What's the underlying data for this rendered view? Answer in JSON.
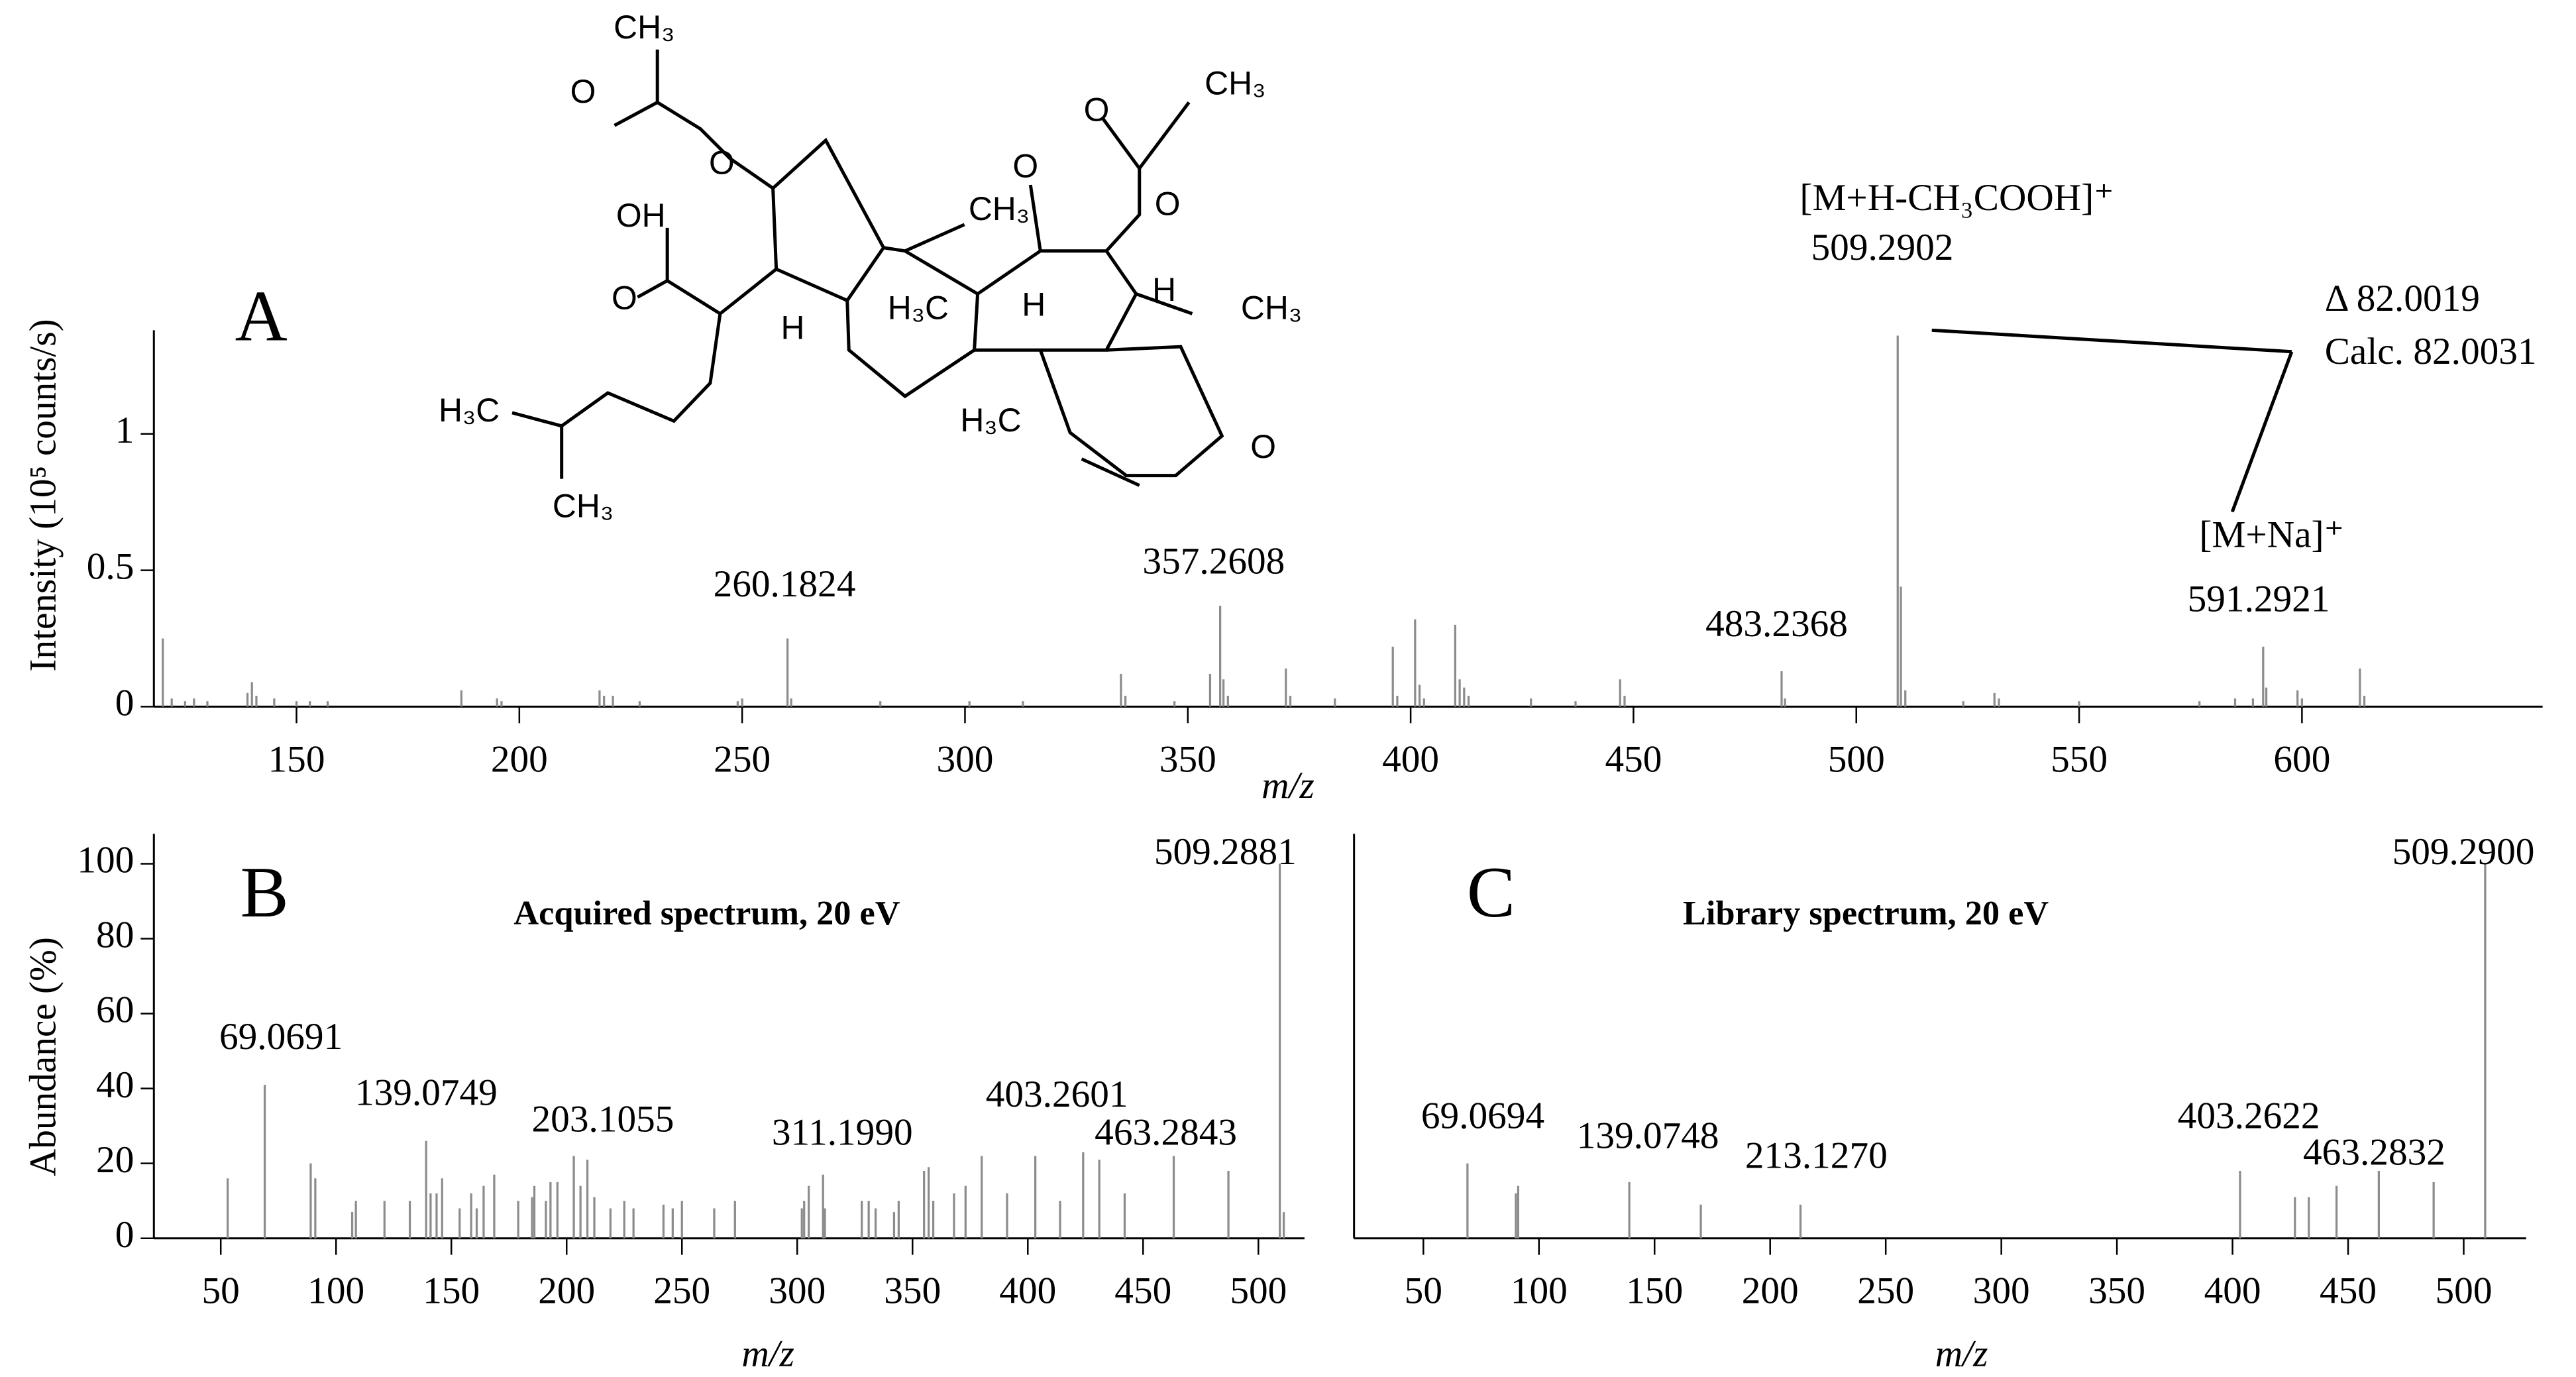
{
  "chart_data": [
    {
      "type": "bar",
      "panel_label": "A",
      "x_label": "m/z",
      "y_label": "Intensity  (10⁵ counts/s)",
      "xlim": [
        118,
        654
      ],
      "ylim": [
        0,
        1.38
      ],
      "xticks": [
        150,
        200,
        250,
        300,
        350,
        400,
        450,
        500,
        550,
        600
      ],
      "yticks": [
        0,
        0.5,
        1
      ],
      "color": "#8c8c8c",
      "x": [
        120,
        122,
        125,
        127,
        130,
        139,
        140,
        141,
        145,
        150,
        153,
        157,
        187,
        195,
        196,
        218,
        219,
        221,
        227,
        249,
        250,
        260.1824,
        261,
        281,
        301,
        313,
        335,
        336,
        347,
        355,
        357.2608,
        358,
        359,
        372,
        373,
        383,
        396,
        397,
        401,
        402,
        403,
        410,
        411,
        412,
        413,
        427,
        437,
        447,
        448,
        483.2368,
        484,
        509.2902,
        510,
        511,
        524,
        531,
        532,
        550,
        577,
        585,
        589,
        591.2921,
        592,
        599,
        600,
        613,
        614
      ],
      "values": [
        0.25,
        0.03,
        0.02,
        0.03,
        0.02,
        0.05,
        0.09,
        0.04,
        0.03,
        0.02,
        0.02,
        0.02,
        0.06,
        0.03,
        0.02,
        0.06,
        0.04,
        0.04,
        0.02,
        0.02,
        0.03,
        0.25,
        0.03,
        0.02,
        0.02,
        0.02,
        0.12,
        0.04,
        0.02,
        0.12,
        0.37,
        0.1,
        0.04,
        0.14,
        0.04,
        0.03,
        0.22,
        0.04,
        0.32,
        0.08,
        0.03,
        0.3,
        0.1,
        0.07,
        0.04,
        0.03,
        0.02,
        0.1,
        0.04,
        0.13,
        0.03,
        1.36,
        0.44,
        0.06,
        0.02,
        0.05,
        0.03,
        0.02,
        0.02,
        0.03,
        0.03,
        0.22,
        0.07,
        0.06,
        0.03,
        0.14,
        0.04
      ],
      "peak_labels": [
        null,
        null,
        null,
        null,
        null,
        null,
        null,
        null,
        null,
        null,
        null,
        null,
        null,
        null,
        null,
        null,
        null,
        null,
        null,
        null,
        null,
        "260.1824",
        null,
        null,
        null,
        null,
        null,
        null,
        null,
        null,
        "357.2608",
        null,
        null,
        null,
        null,
        null,
        null,
        null,
        null,
        null,
        null,
        null,
        null,
        null,
        null,
        null,
        null,
        null,
        null,
        "483.2368",
        null,
        "509.2902",
        null,
        null,
        null,
        null,
        null,
        null,
        null,
        null,
        null,
        "591.2921",
        null,
        null,
        null,
        null,
        null
      ],
      "annotations": [
        "[M+H-CH₃COOH]⁺",
        "Δ 82.0019",
        "Calc. 82.0031",
        "[M+Na]⁺"
      ],
      "structure_labels": [
        "CH₃",
        "O",
        "O",
        "OH",
        "O",
        "CH₃",
        "O",
        "O",
        "O",
        "CH₃",
        "H",
        "H₃C",
        "H",
        "H",
        "CH₃",
        "H₃C",
        "CH₃",
        "H₃C",
        "O"
      ]
    },
    {
      "type": "bar",
      "panel_label": "B",
      "subtitle": "Acquired spectrum, 20 eV",
      "x_label": "m/z",
      "y_label": "Abundance  (%)",
      "xlim": [
        21,
        520
      ],
      "ylim": [
        0,
        108
      ],
      "xticks": [
        50,
        100,
        150,
        200,
        250,
        300,
        350,
        400,
        450,
        500
      ],
      "yticks": [
        0,
        20,
        40,
        60,
        80,
        100
      ],
      "color": "#8c8c8c",
      "x": [
        53,
        69.0691,
        89,
        91,
        107,
        108.6,
        121,
        132,
        139.0749,
        141,
        143.6,
        146,
        153.6,
        158.6,
        161,
        164,
        168.6,
        179,
        185,
        186,
        191,
        193,
        196,
        203.1055,
        206,
        209,
        212,
        219,
        225,
        229,
        242,
        246,
        250,
        264,
        273,
        302,
        303,
        305,
        311.199,
        312,
        328,
        331,
        334,
        342,
        344,
        355,
        357,
        359,
        368,
        373,
        380,
        391,
        403.2601,
        414,
        424,
        431,
        442,
        463.2843,
        487,
        509.2881,
        511
      ],
      "values": [
        16,
        41,
        20,
        16,
        7,
        10,
        10,
        10,
        26,
        12,
        12,
        16,
        8,
        12,
        8,
        14,
        17,
        10,
        11,
        14,
        10,
        15,
        15,
        22,
        14,
        21,
        11,
        8,
        10,
        8,
        9,
        8,
        10,
        8,
        10,
        8,
        10,
        14,
        17,
        8,
        10,
        10,
        8,
        7,
        10,
        18,
        19,
        10,
        12,
        14,
        22,
        12,
        22,
        10,
        23,
        21,
        12,
        22,
        18,
        100,
        7
      ],
      "peak_labels": [
        null,
        "69.0691",
        null,
        null,
        null,
        null,
        null,
        null,
        "139.0749",
        null,
        null,
        null,
        null,
        null,
        null,
        null,
        null,
        null,
        null,
        null,
        null,
        null,
        null,
        "203.1055",
        null,
        null,
        null,
        null,
        null,
        null,
        null,
        null,
        null,
        null,
        null,
        null,
        null,
        null,
        "311.1990",
        null,
        null,
        null,
        null,
        null,
        null,
        null,
        null,
        null,
        null,
        null,
        null,
        null,
        "403.2601",
        null,
        null,
        null,
        null,
        "463.2843",
        null,
        "509.2881",
        null
      ]
    },
    {
      "type": "bar",
      "panel_label": "C",
      "subtitle": "Library spectrum, 20 eV",
      "x_label": "m/z",
      "xlim": [
        20,
        527
      ],
      "ylim": [
        0,
        108
      ],
      "xticks": [
        50,
        100,
        150,
        200,
        250,
        300,
        350,
        400,
        450,
        500
      ],
      "color": "#8c8c8c",
      "x": [
        69.0694,
        90,
        91,
        139.0748,
        170,
        213.127,
        403.2622,
        427,
        433,
        445,
        463.2832,
        487,
        509.29
      ],
      "values": [
        20,
        12,
        14,
        15,
        9,
        9,
        18,
        11,
        11,
        14,
        18,
        15,
        100
      ],
      "peak_labels": [
        "69.0694",
        null,
        null,
        "139.0748",
        null,
        "213.1270",
        "403.2622",
        null,
        null,
        null,
        "463.2832",
        null,
        "509.2900"
      ]
    }
  ]
}
